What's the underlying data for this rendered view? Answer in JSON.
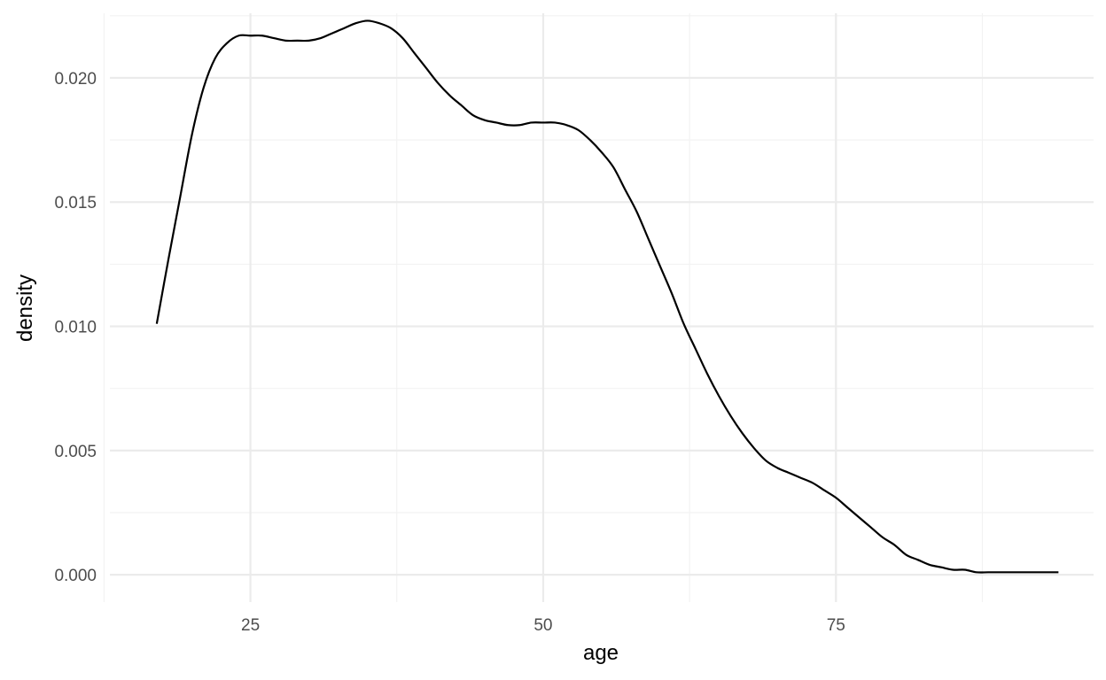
{
  "chart_data": {
    "type": "line",
    "title": "",
    "xlabel": "age",
    "ylabel": "density",
    "xlim": [
      13,
      97
    ],
    "ylim": [
      -0.0011,
      0.0226
    ],
    "x_ticks": [
      25,
      50,
      75
    ],
    "x_tick_labels": [
      "25",
      "50",
      "75"
    ],
    "x_minor_ticks": [
      12.5,
      37.5,
      62.5,
      87.5
    ],
    "y_ticks": [
      0.0,
      0.005,
      0.01,
      0.015,
      0.02
    ],
    "y_tick_labels": [
      "0.000",
      "0.005",
      "0.010",
      "0.015",
      "0.020"
    ],
    "y_minor_ticks": [
      0.0025,
      0.0075,
      0.0125,
      0.0175,
      0.0225
    ],
    "grid": true,
    "legend": "none",
    "line_color": "#000000",
    "series": [
      {
        "x": [
          17,
          18,
          19,
          20,
          21,
          22,
          23,
          24,
          25,
          26,
          27,
          28,
          29,
          30,
          31,
          32,
          33,
          34,
          35,
          36,
          37,
          38,
          39,
          40,
          41,
          42,
          43,
          44,
          45,
          46,
          47,
          48,
          49,
          50,
          51,
          52,
          53,
          54,
          55,
          56,
          57,
          58,
          59,
          60,
          61,
          62,
          63,
          64,
          65,
          66,
          67,
          68,
          69,
          70,
          71,
          72,
          73,
          74,
          75,
          76,
          77,
          78,
          79,
          80,
          81,
          82,
          83,
          84,
          85,
          86,
          87,
          88,
          89,
          90,
          91,
          92,
          93,
          94
        ],
        "y": [
          0.0101,
          0.0127,
          0.0152,
          0.0177,
          0.0196,
          0.0208,
          0.0214,
          0.0217,
          0.0217,
          0.0217,
          0.0216,
          0.0215,
          0.0215,
          0.0215,
          0.0216,
          0.0218,
          0.022,
          0.0222,
          0.0223,
          0.0222,
          0.022,
          0.0216,
          0.021,
          0.0204,
          0.0198,
          0.0193,
          0.0189,
          0.0185,
          0.0183,
          0.0182,
          0.0181,
          0.0181,
          0.0182,
          0.0182,
          0.0182,
          0.0181,
          0.0179,
          0.0175,
          0.017,
          0.0164,
          0.0155,
          0.0146,
          0.0135,
          0.0124,
          0.0113,
          0.0101,
          0.0091,
          0.0081,
          0.0072,
          0.0064,
          0.0057,
          0.0051,
          0.0046,
          0.0043,
          0.0041,
          0.0039,
          0.0037,
          0.0034,
          0.0031,
          0.0027,
          0.0023,
          0.0019,
          0.0015,
          0.0012,
          0.0008,
          0.0006,
          0.0004,
          0.0003,
          0.0002,
          0.0002,
          0.0001,
          0.0001,
          0.0001,
          0.0001,
          0.0001,
          0.0001,
          0.0001,
          0.0001
        ]
      }
    ]
  }
}
